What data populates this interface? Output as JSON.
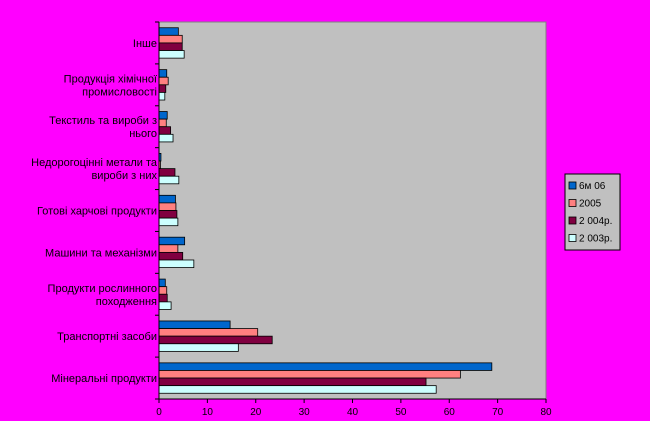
{
  "chart_data": {
    "type": "bar",
    "orientation": "horizontal",
    "categories": [
      "Мінеральні продукти",
      "Транспортні засоби",
      "Продукти рослинного походження",
      "Машини та механізми",
      "Готові харчові продукти",
      "Недорогоцінні метали та вироби з них",
      "Текстиль та вироби з нього",
      "Продукція хімічної промисловості",
      "Інше"
    ],
    "category_lines": [
      [
        "Мінеральні продукти"
      ],
      [
        "Транспортні засоби"
      ],
      [
        "Продукти рослинного",
        "походження"
      ],
      [
        "Машини та механізми"
      ],
      [
        "Готові харчові продукти"
      ],
      [
        "Недорогоцінні метали та",
        "вироби з них"
      ],
      [
        "Текстиль та вироби з",
        "нього"
      ],
      [
        "Продукція хімічної",
        "промисловості"
      ],
      [
        "Інше"
      ]
    ],
    "series": [
      {
        "name": "6м 06",
        "color": "#0066cc",
        "values": [
          68.8,
          14.7,
          1.3,
          5.3,
          3.4,
          0.4,
          1.7,
          1.6,
          4.0
        ]
      },
      {
        "name": "2005",
        "color": "#ff8080",
        "values": [
          62.3,
          20.4,
          1.6,
          3.9,
          3.5,
          0.3,
          1.5,
          1.9,
          4.8
        ]
      },
      {
        "name": "2 004р.",
        "color": "#800040",
        "values": [
          55.2,
          23.4,
          1.7,
          4.9,
          3.7,
          3.3,
          2.4,
          1.4,
          4.8
        ]
      },
      {
        "name": "2 003р.",
        "color": "#ccffff",
        "values": [
          57.3,
          16.4,
          2.5,
          7.2,
          3.9,
          4.1,
          2.9,
          1.2,
          5.2
        ]
      }
    ],
    "xlim": [
      0,
      80
    ],
    "xticks": [
      0,
      10,
      20,
      30,
      40,
      50,
      60,
      70,
      80
    ],
    "plot_background": "#c0c0c0",
    "legend_position": "right",
    "grid": false,
    "title": "",
    "xlabel": "",
    "ylabel": ""
  }
}
